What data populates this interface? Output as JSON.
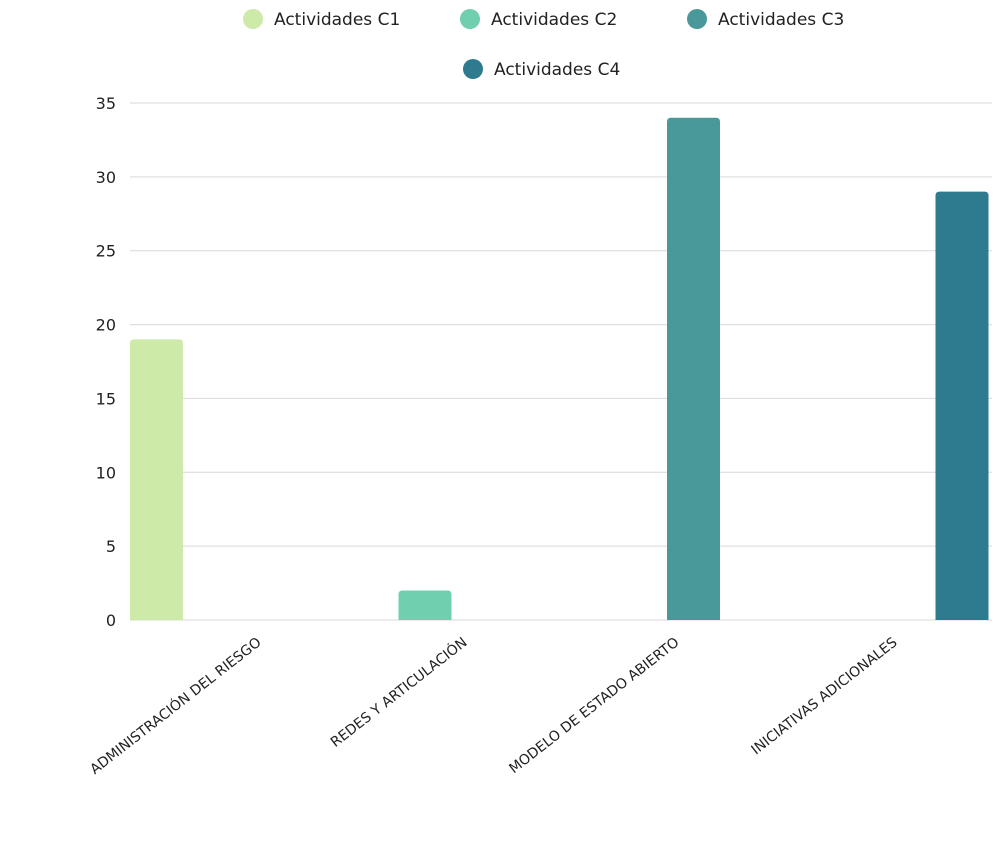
{
  "chart_data": {
    "type": "bar",
    "categories": [
      "ADMINISTRACIÓN DEL RIESGO",
      "REDES Y ARTICULACIÓN",
      "MODELO DE ESTADO ABIERTO",
      "INICIATIVAS ADICIONALES"
    ],
    "series": [
      {
        "name": "Actividades C1",
        "values": [
          19,
          0,
          0,
          0
        ],
        "color": "#cdeaa8"
      },
      {
        "name": "Actividades C2",
        "values": [
          0,
          2,
          0,
          0
        ],
        "color": "#6fcfae"
      },
      {
        "name": "Actividades C3",
        "values": [
          0,
          0,
          34,
          0
        ],
        "color": "#4a999a"
      },
      {
        "name": "Actividades C4",
        "values": [
          0,
          0,
          0,
          29
        ],
        "color": "#2e7b8f"
      }
    ],
    "ylim": [
      0,
      35
    ],
    "yticks": [
      "0",
      "5",
      "10",
      "15",
      "20",
      "25",
      "30",
      "35"
    ],
    "legend_position": "top",
    "grid": true
  }
}
